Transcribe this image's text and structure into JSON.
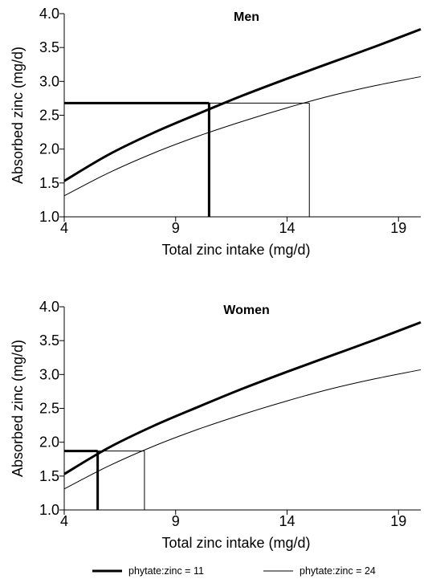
{
  "chart_data": [
    {
      "type": "line",
      "title": "Men",
      "xlabel": "Total zinc intake (mg/d)",
      "ylabel": "Absorbed zinc (mg/d)",
      "xlim": [
        4,
        20
      ],
      "ylim": [
        1.0,
        4.0
      ],
      "x_ticks": [
        4,
        9,
        14,
        19
      ],
      "x_tick_labels": [
        "4",
        "9",
        "14",
        "19"
      ],
      "y_ticks": [
        1.0,
        1.5,
        2.0,
        2.5,
        3.0,
        3.5,
        4.0
      ],
      "y_tick_labels": [
        "1.0",
        "1.5",
        "2.0",
        "2.5",
        "3.0",
        "3.5",
        "4.0"
      ],
      "series": [
        {
          "name": "phytate:zinc = 11",
          "line": "thick",
          "x": [
            4,
            6,
            8,
            10,
            12,
            14,
            16,
            18,
            20
          ],
          "y": [
            1.53,
            1.92,
            2.24,
            2.52,
            2.79,
            3.04,
            3.28,
            3.52,
            3.77
          ]
        },
        {
          "name": "phytate:zinc = 24",
          "line": "thin",
          "x": [
            4,
            6,
            8,
            10,
            12,
            14,
            16,
            18,
            20
          ],
          "y": [
            1.31,
            1.65,
            1.94,
            2.19,
            2.41,
            2.61,
            2.79,
            2.94,
            3.07
          ]
        }
      ],
      "reference_lines": [
        {
          "series": "phytate:zinc = 11",
          "line": "thick",
          "x": 10.5,
          "y": 2.68
        },
        {
          "series": "phytate:zinc = 24",
          "line": "thin",
          "x": 15.0,
          "y": 2.68
        }
      ]
    },
    {
      "type": "line",
      "title": "Women",
      "xlabel": "Total zinc intake (mg/d)",
      "ylabel": "Absorbed zinc (mg/d)",
      "xlim": [
        4,
        20
      ],
      "ylim": [
        1.0,
        4.0
      ],
      "x_ticks": [
        4,
        9,
        14,
        19
      ],
      "x_tick_labels": [
        "4",
        "9",
        "14",
        "19"
      ],
      "y_ticks": [
        1.0,
        1.5,
        2.0,
        2.5,
        3.0,
        3.5,
        4.0
      ],
      "y_tick_labels": [
        "1.0",
        "1.5",
        "2.0",
        "2.5",
        "3.0",
        "3.5",
        "4.0"
      ],
      "series": [
        {
          "name": "phytate:zinc = 11",
          "line": "thick",
          "x": [
            4,
            6,
            8,
            10,
            12,
            14,
            16,
            18,
            20
          ],
          "y": [
            1.53,
            1.92,
            2.24,
            2.52,
            2.79,
            3.04,
            3.28,
            3.52,
            3.77
          ]
        },
        {
          "name": "phytate:zinc = 24",
          "line": "thin",
          "x": [
            4,
            6,
            8,
            10,
            12,
            14,
            16,
            18,
            20
          ],
          "y": [
            1.31,
            1.65,
            1.94,
            2.19,
            2.41,
            2.61,
            2.79,
            2.94,
            3.07
          ]
        }
      ],
      "reference_lines": [
        {
          "series": "phytate:zinc = 11",
          "line": "thick",
          "x": 5.5,
          "y": 1.87
        },
        {
          "series": "phytate:zinc = 24",
          "line": "thin",
          "x": 7.6,
          "y": 1.87
        }
      ]
    }
  ],
  "legend": {
    "placement": "bottom",
    "items": [
      {
        "label": "phytate:zinc = 11",
        "line": "thick"
      },
      {
        "label": "phytate:zinc = 24",
        "line": "thin"
      }
    ]
  }
}
